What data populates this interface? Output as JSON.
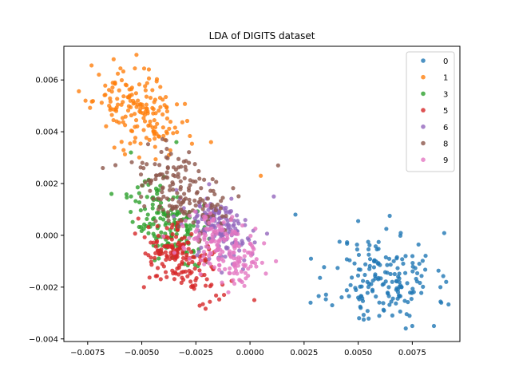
{
  "chart_data": {
    "type": "scatter",
    "title": "LDA of DIGITS dataset",
    "xlabel": "",
    "ylabel": "",
    "xlim": [
      -0.0086,
      0.0097
    ],
    "ylim": [
      -0.0041,
      0.0073
    ],
    "x_ticks": [
      -0.0075,
      -0.005,
      -0.0025,
      0.0,
      0.0025,
      0.005,
      0.0075
    ],
    "x_tick_labels": [
      "−0.0075",
      "−0.0050",
      "−0.0025",
      "0.0000",
      "0.0025",
      "0.0050",
      "0.0075"
    ],
    "y_ticks": [
      -0.004,
      -0.002,
      0.0,
      0.002,
      0.004,
      0.006
    ],
    "y_tick_labels": [
      "−0.004",
      "−0.002",
      "0.000",
      "0.002",
      "0.004",
      "0.006"
    ],
    "grid": false,
    "legend_placement": "upper-right",
    "series": [
      {
        "name": "0",
        "color": "#1f77b4",
        "cluster": {
          "cx": 0.0062,
          "cy": -0.0017,
          "sx": 0.0012,
          "sy": 0.0009,
          "n": 170,
          "seed": 11
        },
        "points": [
          [
            0.005,
            0.00055
          ],
          [
            0.0063,
            0.00025
          ],
          [
            0.0021,
            0.0008
          ],
          [
            0.0028,
            -0.0026
          ],
          [
            0.0075,
            -0.0035
          ],
          [
            0.0085,
            -0.0035
          ],
          [
            0.0088,
            -0.002
          ]
        ]
      },
      {
        "name": "1",
        "color": "#ff7f0e",
        "cluster": {
          "cx": -0.0052,
          "cy": 0.0048,
          "sx": 0.001,
          "sy": 0.0007,
          "n": 170,
          "seed": 23
        },
        "points": [
          [
            -0.0076,
            0.0052
          ],
          [
            -0.0063,
            0.0068
          ],
          [
            -0.0018,
            0.0036
          ],
          [
            0.0005,
            0.0023
          ]
        ]
      },
      {
        "name": "3",
        "color": "#2ca02c",
        "cluster": {
          "cx": -0.0038,
          "cy": 0.0005,
          "sx": 0.0008,
          "sy": 0.0007,
          "n": 160,
          "seed": 37
        },
        "points": [
          [
            -0.0064,
            0.0016
          ],
          [
            -0.0055,
            0.0032
          ],
          [
            -0.0034,
            0.0036
          ]
        ]
      },
      {
        "name": "5",
        "color": "#d62728",
        "cluster": {
          "cx": -0.0032,
          "cy": -0.0009,
          "sx": 0.0009,
          "sy": 0.0006,
          "n": 170,
          "seed": 41
        },
        "points": [
          [
            -0.0049,
            -0.002
          ],
          [
            -0.0012,
            -0.0023
          ],
          [
            0.0002,
            -0.0025
          ]
        ]
      },
      {
        "name": "6",
        "color": "#9467bd",
        "cluster": {
          "cx": -0.0014,
          "cy": 0.0003,
          "sx": 0.0008,
          "sy": 0.0006,
          "n": 160,
          "seed": 53
        },
        "points": [
          [
            0.0011,
            0.0015
          ]
        ]
      },
      {
        "name": "8",
        "color": "#8c564b",
        "cluster": {
          "cx": -0.0033,
          "cy": 0.0016,
          "sx": 0.001,
          "sy": 0.0007,
          "n": 160,
          "seed": 67
        },
        "points": [
          [
            -0.0068,
            0.0026
          ],
          [
            0.0013,
            0.0027
          ]
        ]
      },
      {
        "name": "9",
        "color": "#e377c2",
        "cluster": {
          "cx": -0.0012,
          "cy": -0.0004,
          "sx": 0.0009,
          "sy": 0.0006,
          "n": 170,
          "seed": 79
        },
        "points": [
          [
            0.0012,
            -0.001
          ],
          [
            -0.001,
            -0.0022
          ]
        ]
      }
    ]
  }
}
